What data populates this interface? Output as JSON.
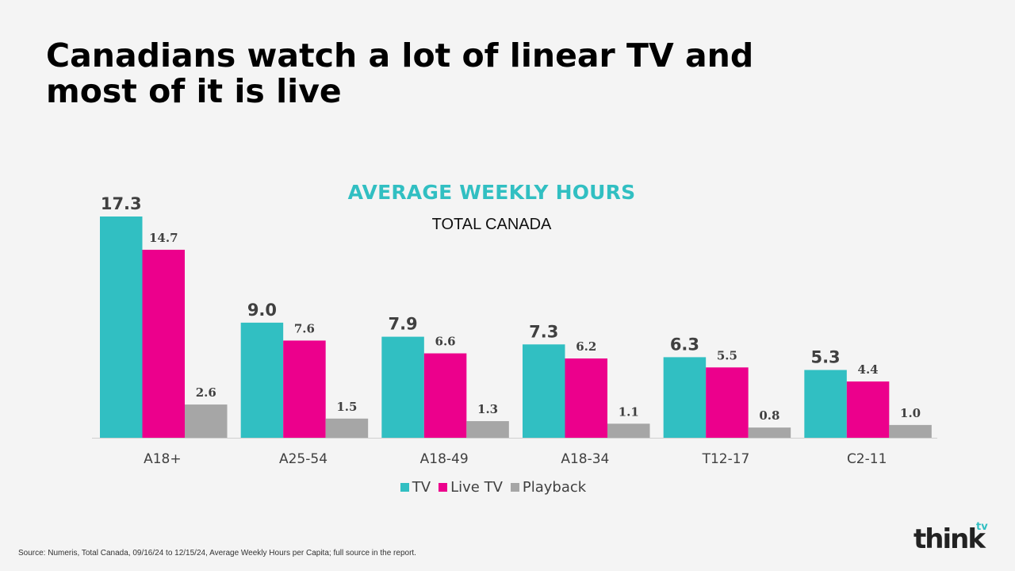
{
  "slide": {
    "title_line1": "Canadians watch a lot of linear TV and",
    "title_line2": "most of it is live",
    "source": "Source: Numeris, Total Canada, 09/16/24 to 12/15/24, Average Weekly Hours per Capita; full source in the report.",
    "logo_text": "think",
    "logo_sup": "tv"
  },
  "colors": {
    "tv": "#31bfc2",
    "live_tv": "#ec008c",
    "playback": "#a6a6a6",
    "title_accent": "#31bfc2"
  },
  "chart_data": {
    "type": "bar",
    "title": "AVERAGE WEEKLY HOURS",
    "subtitle": "TOTAL CANADA",
    "categories": [
      "A18+",
      "A25-54",
      "A18-49",
      "A18-34",
      "T12-17",
      "C2-11"
    ],
    "series": [
      {
        "name": "TV",
        "values": [
          17.3,
          9.0,
          7.9,
          7.3,
          6.3,
          5.3
        ],
        "labels": [
          "17.3",
          "9.0",
          "7.9",
          "7.3",
          "6.3",
          "5.3"
        ]
      },
      {
        "name": "Live TV",
        "values": [
          14.7,
          7.6,
          6.6,
          6.2,
          5.5,
          4.4
        ],
        "labels": [
          "14.7",
          "7.6",
          "6.6",
          "6.2",
          "5.5",
          "4.4"
        ]
      },
      {
        "name": "Playback",
        "values": [
          2.6,
          1.5,
          1.3,
          1.1,
          0.8,
          1.0
        ],
        "labels": [
          "2.6",
          "1.5",
          "1.3",
          "1.1",
          "0.8",
          "1.0"
        ]
      }
    ],
    "ylim": [
      0,
      17.3
    ],
    "grid": false,
    "legend": "bottom"
  }
}
